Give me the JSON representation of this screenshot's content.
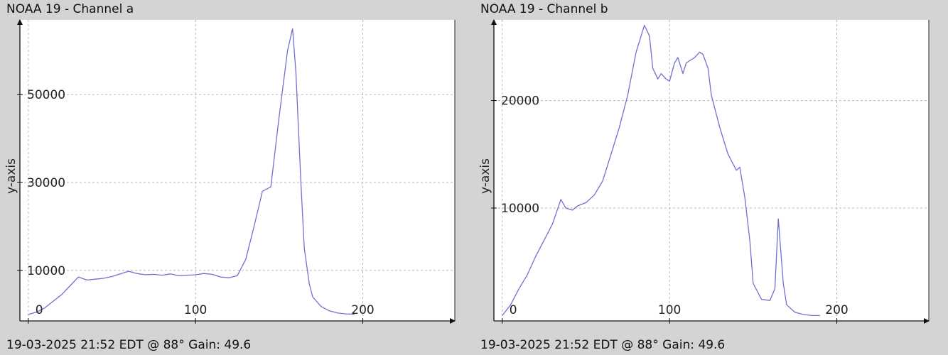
{
  "panels": [
    {
      "title": "NOAA 19 - Channel a",
      "footer": "19-03-2025 21:52 EDT @ 88° Gain: 49.6"
    },
    {
      "title": "NOAA 19 - Channel b",
      "footer": "19-03-2025 21:52 EDT @ 88° Gain: 49.6"
    }
  ],
  "chart_data": [
    {
      "type": "line",
      "title": "NOAA 19 - Channel a",
      "xlabel": "",
      "ylabel": "y-axis",
      "xlim": [
        -5,
        255
      ],
      "ylim": [
        -1500,
        67000
      ],
      "x_ticks": [
        0,
        100,
        200
      ],
      "y_ticks": [
        10000,
        30000,
        50000
      ],
      "x_tick_labels": [
        "0",
        "100",
        "200"
      ],
      "y_tick_labels": [
        "10000",
        "30000",
        "50000"
      ],
      "grid": true,
      "line_color": "#7070d0",
      "series": [
        {
          "x": [
            0,
            5,
            10,
            15,
            20,
            25,
            30,
            35,
            40,
            45,
            50,
            55,
            60,
            65,
            70,
            75,
            80,
            85,
            90,
            95,
            100,
            105,
            110,
            115,
            120,
            125,
            130,
            135,
            140,
            145,
            150,
            155,
            158,
            160,
            163,
            165,
            168,
            170,
            175,
            180,
            185,
            190,
            195
          ],
          "values": [
            0,
            500,
            1500,
            3000,
            4500,
            6500,
            8500,
            7800,
            8000,
            8200,
            8600,
            9200,
            9800,
            9300,
            9000,
            9100,
            8900,
            9200,
            8800,
            8900,
            9000,
            9300,
            9100,
            8500,
            8300,
            8800,
            12500,
            20000,
            28000,
            29000,
            45000,
            60000,
            65000,
            55000,
            30000,
            15000,
            7000,
            4000,
            1800,
            800,
            300,
            100,
            0
          ]
        }
      ]
    },
    {
      "type": "line",
      "title": "NOAA 19 - Channel b",
      "xlabel": "",
      "ylabel": "y-axis",
      "xlim": [
        -5,
        255
      ],
      "ylim": [
        -500,
        27500
      ],
      "x_ticks": [
        0,
        100,
        200
      ],
      "y_ticks": [
        10000,
        20000
      ],
      "x_tick_labels": [
        "0",
        "100",
        "200"
      ],
      "y_tick_labels": [
        "10000",
        "20000"
      ],
      "grid": true,
      "line_color": "#7070d0",
      "series": [
        {
          "x": [
            0,
            5,
            10,
            15,
            20,
            25,
            30,
            35,
            38,
            42,
            45,
            50,
            55,
            60,
            65,
            70,
            75,
            80,
            85,
            88,
            90,
            93,
            95,
            98,
            100,
            103,
            105,
            108,
            110,
            113,
            115,
            118,
            120,
            123,
            125,
            130,
            135,
            140,
            142,
            145,
            148,
            150,
            155,
            160,
            163,
            165,
            168,
            170,
            175,
            180,
            185,
            190
          ],
          "values": [
            0,
            1000,
            2500,
            3800,
            5500,
            7000,
            8500,
            10800,
            10000,
            9800,
            10200,
            10500,
            11200,
            12500,
            15000,
            17500,
            20500,
            24500,
            27000,
            26000,
            23000,
            22000,
            22500,
            22000,
            21800,
            23500,
            24000,
            22500,
            23500,
            23800,
            24000,
            24500,
            24300,
            23000,
            20500,
            17500,
            15000,
            13500,
            13800,
            11000,
            7000,
            3000,
            1500,
            1400,
            2500,
            9000,
            3000,
            1000,
            300,
            100,
            0,
            0
          ]
        }
      ]
    }
  ]
}
